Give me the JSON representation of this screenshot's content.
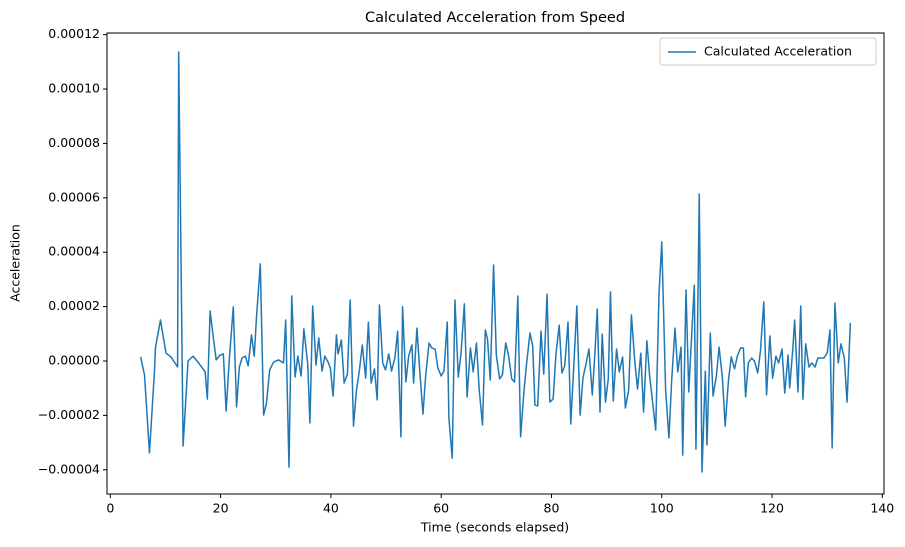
{
  "chart_data": {
    "type": "line",
    "title": "Calculated Acceleration from Speed",
    "x_label": "Time (seconds elapsed)",
    "y_label": "Acceleration",
    "xlim": [
      -0.6,
      140.3
    ],
    "ylim": [
      -4.89e-05,
      0.0001206
    ],
    "xticks": [
      0,
      20,
      40,
      60,
      80,
      100,
      120,
      140
    ],
    "yticks": [
      {
        "value": -4e-05,
        "label": "−0.00004"
      },
      {
        "value": -2e-05,
        "label": "−0.00002"
      },
      {
        "value": 0,
        "label": "0.00000"
      },
      {
        "value": 2e-05,
        "label": "0.00002"
      },
      {
        "value": 4e-05,
        "label": "0.00004"
      },
      {
        "value": 6e-05,
        "label": "0.00006"
      },
      {
        "value": 8e-05,
        "label": "0.00008"
      },
      {
        "value": 0.0001,
        "label": "0.00010"
      },
      {
        "value": 0.00012,
        "label": "0.00012"
      }
    ],
    "grid": false,
    "legend": "upper right",
    "x": [
      5.5,
      6.2,
      7.1,
      8.0,
      8.2,
      9.1,
      10.1,
      11.0,
      12.2,
      12.4,
      13.2,
      14.1,
      15.0,
      15.9,
      17.2,
      17.6,
      18.1,
      18.6,
      19.2,
      19.9,
      20.5,
      21.0,
      21.6,
      22.3,
      22.9,
      23.4,
      23.9,
      24.5,
      25.0,
      25.6,
      26.1,
      26.5,
      27.2,
      27.8,
      28.3,
      28.9,
      29.6,
      30.5,
      31.4,
      31.8,
      32.4,
      32.9,
      33.5,
      34.0,
      34.6,
      35.1,
      35.8,
      36.2,
      36.7,
      37.3,
      37.8,
      38.4,
      38.9,
      39.5,
      39.9,
      40.4,
      41.0,
      41.3,
      41.9,
      42.4,
      43.0,
      43.5,
      44.1,
      44.6,
      45.2,
      45.7,
      46.3,
      46.8,
      47.3,
      47.9,
      48.4,
      48.8,
      49.4,
      49.9,
      50.5,
      51.0,
      51.6,
      52.1,
      52.7,
      53.0,
      53.6,
      54.1,
      54.7,
      55.0,
      55.6,
      56.1,
      56.7,
      57.2,
      57.8,
      58.3,
      58.9,
      59.4,
      60.0,
      60.5,
      61.1,
      61.4,
      62.0,
      62.5,
      63.1,
      63.6,
      64.2,
      64.7,
      65.3,
      65.8,
      66.4,
      66.9,
      67.5,
      68.0,
      68.4,
      68.9,
      69.5,
      70.0,
      70.6,
      71.1,
      71.7,
      72.2,
      72.8,
      73.3,
      73.9,
      74.4,
      75.0,
      75.5,
      76.1,
      76.6,
      77.0,
      77.5,
      78.1,
      78.6,
      79.2,
      79.7,
      80.3,
      80.8,
      81.4,
      81.9,
      82.4,
      83.0,
      83.5,
      84.1,
      84.6,
      85.2,
      85.7,
      86.3,
      86.8,
      87.4,
      87.9,
      88.3,
      88.8,
      89.2,
      89.8,
      90.3,
      90.7,
      91.2,
      91.8,
      92.3,
      92.9,
      93.4,
      94.0,
      94.5,
      95.1,
      95.6,
      96.2,
      96.7,
      97.3,
      97.8,
      98.4,
      98.9,
      99.5,
      100.0,
      100.7,
      101.3,
      101.8,
      102.4,
      102.9,
      103.5,
      103.8,
      104.4,
      104.9,
      105.5,
      105.9,
      106.2,
      106.8,
      107.3,
      107.9,
      108.2,
      108.8,
      109.3,
      109.9,
      110.4,
      111.0,
      111.5,
      112.1,
      112.6,
      113.2,
      113.7,
      114.3,
      114.8,
      115.2,
      115.7,
      116.3,
      116.8,
      117.4,
      117.9,
      118.5,
      119.0,
      119.6,
      120.1,
      120.7,
      121.2,
      121.8,
      122.3,
      122.9,
      123.2,
      123.8,
      124.1,
      124.7,
      125.2,
      125.6,
      126.1,
      126.7,
      127.2,
      127.8,
      128.3,
      128.9,
      129.4,
      130.0,
      130.5,
      130.9,
      131.4,
      132.0,
      132.5,
      133.1,
      133.6,
      134.2
    ],
    "series": [
      {
        "name": "Calculated Acceleration",
        "color": "#1f77b4",
        "values": [
          1.5e-06,
          -5.1e-06,
          -3.38e-05,
          -4e-06,
          5.1e-06,
          1.51e-05,
          2.9e-06,
          1.5e-06,
          -2.2e-06,
          0.0001136,
          -3.13e-05,
          0,
          1.8e-06,
          -4e-07,
          -4e-06,
          -1.4e-05,
          1.84e-05,
          9.9e-06,
          4e-07,
          2.2e-06,
          2.6e-06,
          -1.84e-05,
          1.1e-06,
          1.99e-05,
          -1.69e-05,
          -2.2e-06,
          1.1e-06,
          1.8e-06,
          -1.8e-06,
          9.6e-06,
          1.8e-06,
          1.58e-05,
          3.57e-05,
          -1.99e-05,
          -1.58e-05,
          -3.3e-06,
          -4e-07,
          4e-07,
          -7e-07,
          1.51e-05,
          -3.9e-05,
          2.39e-05,
          -5.9e-06,
          1.8e-06,
          -5.5e-06,
          1.18e-05,
          -1.1e-06,
          -2.28e-05,
          2.02e-05,
          -1.5e-06,
          8.5e-06,
          -3.7e-06,
          1.8e-06,
          -4e-07,
          -2.6e-06,
          -1.29e-05,
          9.6e-06,
          2.6e-06,
          7.7e-06,
          -8.1e-06,
          -4.8e-06,
          2.24e-05,
          -2.39e-05,
          -1.14e-05,
          -2.9e-06,
          5.9e-06,
          -6.3e-06,
          1.43e-05,
          -8.1e-06,
          -2.9e-06,
          -1.43e-05,
          2.06e-05,
          -7e-07,
          -3.3e-06,
          2.6e-06,
          -3.7e-06,
          1.1e-06,
          1.1e-05,
          -2.79e-05,
          1.99e-05,
          -7.7e-06,
          1.8e-06,
          5.9e-06,
          -8.1e-06,
          1.21e-05,
          -3.3e-06,
          -1.95e-05,
          -5.1e-06,
          6.6e-06,
          4.8e-06,
          4.4e-06,
          -2.6e-06,
          -5.5e-06,
          -3.7e-06,
          1.43e-05,
          -2.1e-05,
          -3.57e-05,
          2.24e-05,
          -5.9e-06,
          2.9e-06,
          2.1e-05,
          -1.32e-05,
          4.8e-06,
          -4e-06,
          6.6e-06,
          -1.07e-05,
          -2.35e-05,
          1.14e-05,
          8.1e-06,
          -7e-06,
          3.53e-05,
          2.2e-06,
          -6.6e-06,
          -5.1e-06,
          6.6e-06,
          2.2e-06,
          -6.6e-06,
          -7.7e-06,
          2.39e-05,
          -2.79e-05,
          -1.14e-05,
          -7e-07,
          1.03e-05,
          5.5e-06,
          -1.62e-05,
          -1.65e-05,
          1.1e-05,
          -4.8e-06,
          2.46e-05,
          -1.51e-05,
          -1.4e-05,
          2.2e-06,
          1.32e-05,
          -4.4e-06,
          -1.8e-06,
          1.43e-05,
          -2.32e-05,
          4e-07,
          2.02e-05,
          -1.99e-05,
          -6.3e-06,
          -7e-07,
          4.4e-06,
          -1.25e-05,
          3.7e-06,
          1.91e-05,
          -1.88e-05,
          9.9e-06,
          -1.51e-05,
          -6.6e-06,
          2.54e-05,
          -1.47e-05,
          4.4e-06,
          -4e-06,
          1.5e-06,
          -1.73e-05,
          -1.07e-05,
          1.69e-05,
          0,
          -1.03e-05,
          2.9e-06,
          -1.88e-05,
          7.4e-06,
          -5.5e-06,
          -1.62e-05,
          -2.54e-05,
          2.46e-05,
          4.38e-05,
          -1.07e-05,
          -2.83e-05,
          -7e-06,
          1.21e-05,
          -4e-06,
          5.1e-06,
          -3.46e-05,
          2.61e-05,
          -1.14e-05,
          1.25e-05,
          2.79e-05,
          -3.24e-05,
          6.14e-05,
          -4.08e-05,
          -3.7e-06,
          -3.09e-05,
          1.03e-05,
          -1.29e-05,
          -5.5e-06,
          5.1e-06,
          -6.3e-06,
          -2.39e-05,
          -7e-06,
          1.5e-06,
          -2.9e-06,
          1.8e-06,
          4.8e-06,
          4.8e-06,
          -1.32e-05,
          -7e-07,
          1.1e-06,
          0,
          -4.4e-06,
          3.7e-06,
          2.17e-05,
          -1.25e-05,
          9.2e-06,
          -6.3e-06,
          1.8e-06,
          -7e-07,
          4.4e-06,
          -1.18e-05,
          2.2e-06,
          -9.9e-06,
          5.5e-06,
          1.51e-05,
          -1.14e-05,
          2.02e-05,
          -1.4e-05,
          6.3e-06,
          -2.2e-06,
          -7e-07,
          -2.2e-06,
          1.1e-06,
          1.1e-06,
          1.1e-06,
          2.9e-06,
          1.14e-05,
          -3.2e-05,
          2.13e-05,
          -7e-07,
          6.3e-06,
          1.1e-06,
          -1.51e-05,
          1.4e-05
        ]
      }
    ]
  }
}
